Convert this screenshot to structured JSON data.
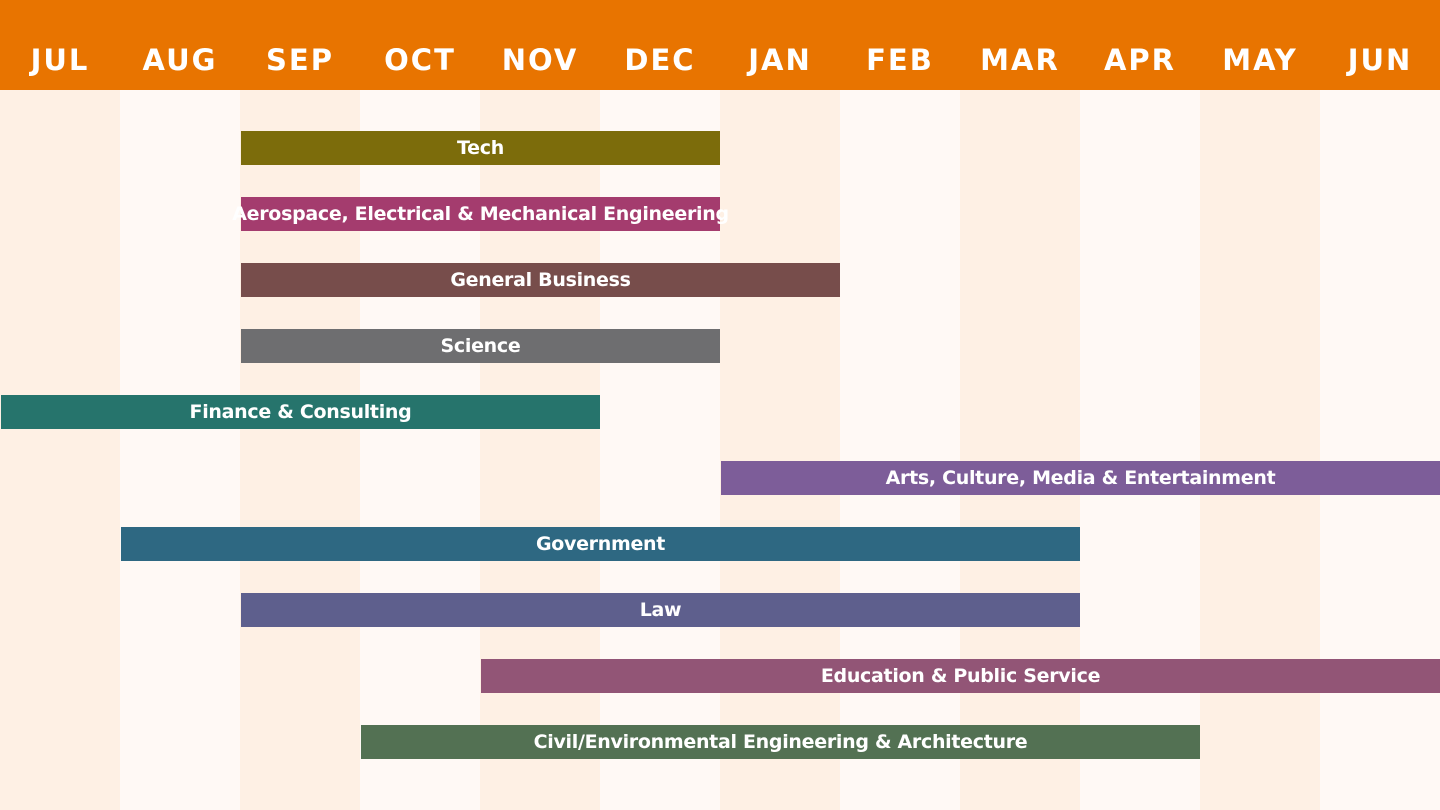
{
  "chart_data": {
    "type": "bar",
    "title": "",
    "months": [
      "JUL",
      "AUG",
      "SEP",
      "OCT",
      "NOV",
      "DEC",
      "JAN",
      "FEB",
      "MAR",
      "APR",
      "MAY",
      "JUN"
    ],
    "grid": true,
    "colors": {
      "header": "#e87400",
      "column_light": "#fef0e4",
      "column_lighter": "#fff9f5"
    },
    "series": [
      {
        "name": "Tech",
        "start_month": "SEP",
        "end_month": "DEC",
        "color": "#7c6c0b"
      },
      {
        "name": "Aerospace, Electrical & Mechanical Engineering",
        "start_month": "SEP",
        "end_month": "DEC",
        "color": "#a43c6e"
      },
      {
        "name": "General Business",
        "start_month": "SEP",
        "end_month": "JAN",
        "color": "#774d4b"
      },
      {
        "name": "Science",
        "start_month": "SEP",
        "end_month": "DEC",
        "color": "#6e6e70"
      },
      {
        "name": "Finance & Consulting",
        "start_month": "JUL",
        "end_month": "NOV",
        "color": "#26746c"
      },
      {
        "name": "Arts, Culture, Media & Entertainment",
        "start_month": "JAN",
        "end_month": "JUN",
        "color": "#7d5d99"
      },
      {
        "name": "Government",
        "start_month": "AUG",
        "end_month": "MAR",
        "color": "#2e6882"
      },
      {
        "name": "Law",
        "start_month": "SEP",
        "end_month": "MAR",
        "color": "#5e5f8d"
      },
      {
        "name": "Education & Public Service",
        "start_month": "NOV",
        "end_month": "JUN",
        "color": "#925576"
      },
      {
        "name": "Civil/Environmental Engineering & Architecture",
        "start_month": "OCT",
        "end_month": "APR",
        "color": "#537153"
      }
    ]
  }
}
